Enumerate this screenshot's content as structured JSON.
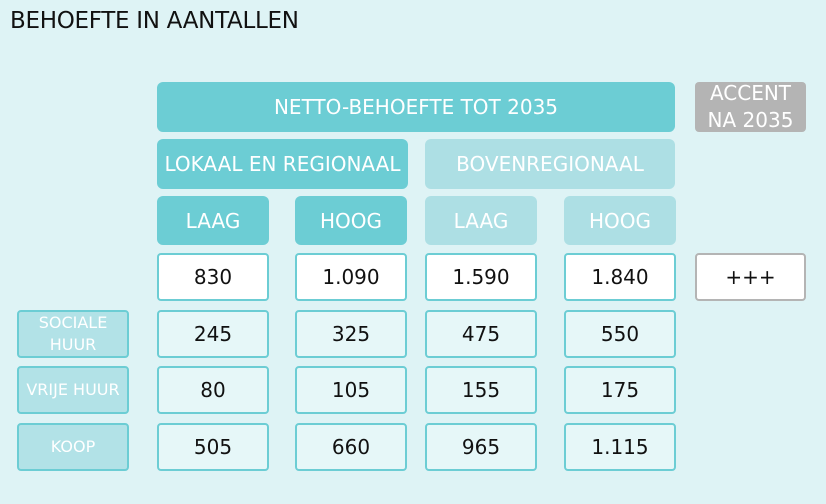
{
  "title": "BEHOEFTE IN AANTALLEN",
  "headers": {
    "netto": "NETTO-BEHOEFTE TOT 2035",
    "accent_line1": "ACCENT",
    "accent_line2": "NA 2035",
    "lokaal": "LOKAAL EN REGIONAAL",
    "boven": "BOVENREGIONAAL",
    "cols": [
      "LAAG",
      "HOOG",
      "LAAG",
      "HOOG"
    ]
  },
  "totals": {
    "values": [
      "830",
      "1.090",
      "1.590",
      "1.840"
    ],
    "accent": "+++"
  },
  "rows": [
    {
      "label_line1": "SOCIALE",
      "label_line2": "HUUR",
      "values": [
        "245",
        "325",
        "475",
        "550"
      ]
    },
    {
      "label_line1": "VRIJE HUUR",
      "label_line2": "",
      "values": [
        "80",
        "105",
        "155",
        "175"
      ]
    },
    {
      "label_line1": "KOOP",
      "label_line2": "",
      "values": [
        "505",
        "660",
        "965",
        "1.115"
      ]
    }
  ],
  "colors": {
    "background": "#def3f5",
    "header_dark": "#6ccdd4",
    "header_light": "#addfe4",
    "accent_grey": "#b4b4b4"
  }
}
